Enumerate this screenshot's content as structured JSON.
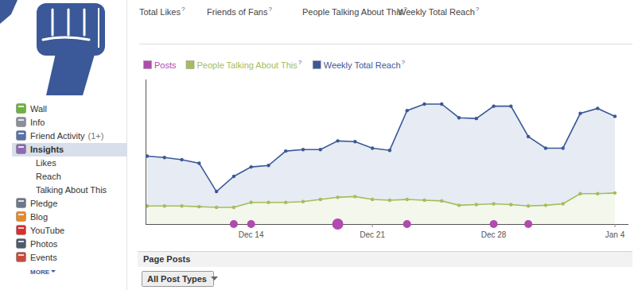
{
  "page": {
    "tabs": [
      "Total Likes",
      "Friends of Fans",
      "People Talking About This",
      "Weekly Total Reach"
    ],
    "help_mark": "?",
    "legend_help": [
      false,
      true,
      true
    ],
    "sidebar": {
      "items": [
        {
          "label": "Wall"
        },
        {
          "label": "Info"
        },
        {
          "label": "Friend Activity",
          "badge": "(1+)"
        },
        {
          "label": "Insights",
          "selected": true
        },
        {
          "label": "Likes",
          "sub": true
        },
        {
          "label": "Reach",
          "sub": true
        },
        {
          "label": "Talking About This",
          "sub": true
        },
        {
          "label": "Pledge"
        },
        {
          "label": "Blog"
        },
        {
          "label": "YouTube"
        },
        {
          "label": "Photos"
        },
        {
          "label": "Events"
        }
      ],
      "more": "MORE"
    },
    "section": {
      "title": "Page Posts",
      "filter": "All Post Types"
    }
  },
  "chart_data": {
    "type": "line",
    "categories": [
      null,
      null,
      null,
      null,
      null,
      null,
      "Dec 14",
      null,
      null,
      null,
      null,
      null,
      null,
      "Dec 21",
      null,
      null,
      null,
      null,
      null,
      null,
      "Dec 28",
      null,
      null,
      null,
      null,
      null,
      null,
      "Jan 4"
    ],
    "series": [
      {
        "name": "Posts",
        "color": "#b04ab0",
        "type": "scatter",
        "marker": "circle",
        "values": [
          null,
          null,
          null,
          null,
          null,
          1,
          1,
          null,
          null,
          null,
          null,
          2,
          null,
          null,
          null,
          1,
          null,
          null,
          null,
          null,
          1,
          null,
          1,
          null,
          null,
          null,
          null,
          null
        ]
      },
      {
        "name": "People Talking About This",
        "color": "#a4bd5c",
        "type": "area",
        "marker": "circle",
        "values": [
          12.5,
          12.5,
          12.5,
          12,
          11.5,
          11.5,
          15,
          15,
          15,
          15.5,
          17,
          18.5,
          19,
          17,
          16.5,
          17,
          16.5,
          16,
          13,
          13.5,
          14,
          13.5,
          12.5,
          13,
          14,
          21,
          21,
          21.5
        ]
      },
      {
        "name": "Weekly Total Reach",
        "color": "#3b5998",
        "type": "area",
        "marker": "circle",
        "values": [
          47,
          46,
          44.5,
          42,
          22.5,
          33,
          39.5,
          40.5,
          50.5,
          51.5,
          51.5,
          57.5,
          57,
          52.5,
          51,
          78.5,
          83,
          83,
          73.5,
          73,
          81.5,
          81.5,
          60.5,
          52.5,
          52.5,
          76.5,
          80,
          74.5
        ]
      }
    ],
    "ylim": [
      0,
      100
    ],
    "yticks": [],
    "tick_labels": "x",
    "grid": false,
    "legend": "top"
  }
}
